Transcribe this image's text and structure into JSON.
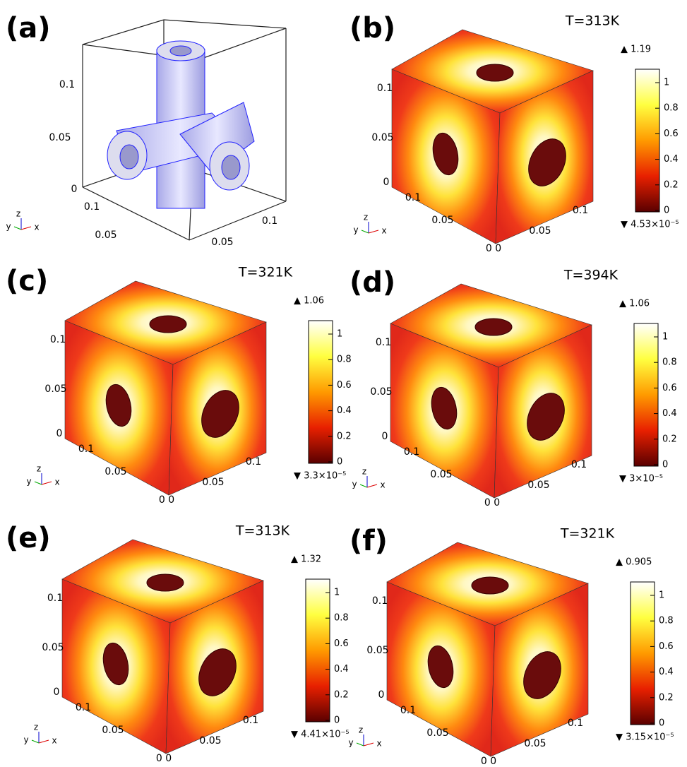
{
  "panels": [
    {
      "label": "(a)",
      "axis_ticks": [
        "0.1",
        "0.05",
        "0",
        "0.1",
        "0.05",
        "0.1",
        "0.05"
      ],
      "triad": [
        "y",
        "z",
        "x"
      ]
    },
    {
      "label": "(b)",
      "title": "T=313K",
      "max": "▲ 1.19",
      "min": "▼ 4.53×10⁻⁵",
      "colorbar_ticks": [
        1,
        0.8,
        0.6,
        0.4,
        0.2,
        0
      ],
      "axis_ticks": [
        "0.1",
        "0.05",
        "0",
        "0.1",
        "0.05",
        "0 0",
        "0.1",
        "0.05"
      ],
      "triad": [
        "y",
        "z",
        "x"
      ]
    },
    {
      "label": "(c)",
      "title": "T=321K",
      "max": "▲ 1.06",
      "min": "▼ 3.3×10⁻⁵",
      "colorbar_ticks": [
        1,
        0.8,
        0.6,
        0.4,
        0.2,
        0
      ],
      "axis_ticks": [
        "0.1",
        "0.05",
        "0",
        "0.1",
        "0.05",
        "0 0",
        "0.1",
        "0.05"
      ],
      "triad": [
        "y",
        "z",
        "x"
      ]
    },
    {
      "label": "(d)",
      "title": "T=394K",
      "max": "▲ 1.06",
      "min": "▼ 3×10⁻⁵",
      "colorbar_ticks": [
        1,
        0.8,
        0.6,
        0.4,
        0.2,
        0
      ],
      "axis_ticks": [
        "0.1",
        "0.05",
        "0",
        "0.1",
        "0.05",
        "0 0",
        "0.1",
        "0.05"
      ],
      "triad": [
        "y",
        "z",
        "x"
      ]
    },
    {
      "label": "(e)",
      "title": "T=313K",
      "max": "▲ 1.32",
      "min": "▼ 4.41×10⁻⁵",
      "colorbar_ticks": [
        1,
        0.8,
        0.6,
        0.4,
        0.2,
        0
      ],
      "axis_ticks": [
        "0.1",
        "0.05",
        "0",
        "0.1",
        "0.05",
        "0 0",
        "0.1",
        "0.05"
      ],
      "triad": [
        "y",
        "z",
        "x"
      ]
    },
    {
      "label": "(f)",
      "title": "T=321K",
      "max": "▲ 0.905",
      "min": "▼ 3.15×10⁻⁵",
      "colorbar_ticks": [
        1,
        0.8,
        0.6,
        0.4,
        0.2,
        0
      ],
      "axis_ticks": [
        "0.1",
        "0.05",
        "0",
        "0.1",
        "0.05",
        "0 0",
        "0.1",
        "0.05"
      ],
      "triad": [
        "y",
        "z",
        "x"
      ]
    }
  ]
}
